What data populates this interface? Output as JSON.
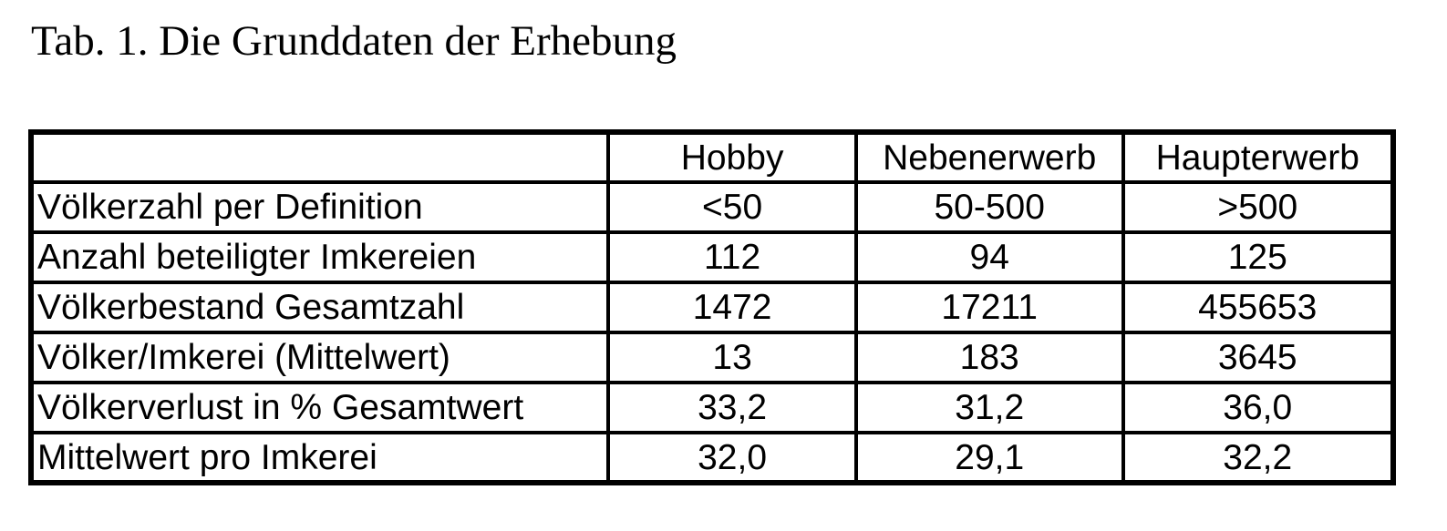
{
  "title": "Tab. 1. Die Grunddaten der Erhebung",
  "table": {
    "headers": [
      "Hobby",
      "Nebenerwerb",
      "Haupterwerb"
    ],
    "rows": [
      [
        "Völkerzahl per Definition",
        "<50",
        "50-500",
        ">500"
      ],
      [
        "Anzahl beteiligter Imkereien",
        "112",
        "94",
        "125"
      ],
      [
        "Völkerbestand Gesamtzahl",
        "1472",
        "17211",
        "455653"
      ],
      [
        "Völker/Imkerei (Mittelwert)",
        "13",
        "183",
        "3645"
      ],
      [
        "Völkerverlust in % Gesamtwert",
        "33,2",
        "31,2",
        "36,0"
      ],
      [
        "Mittelwert pro Imkerei",
        "32,0",
        "29,1",
        "32,2"
      ]
    ]
  }
}
